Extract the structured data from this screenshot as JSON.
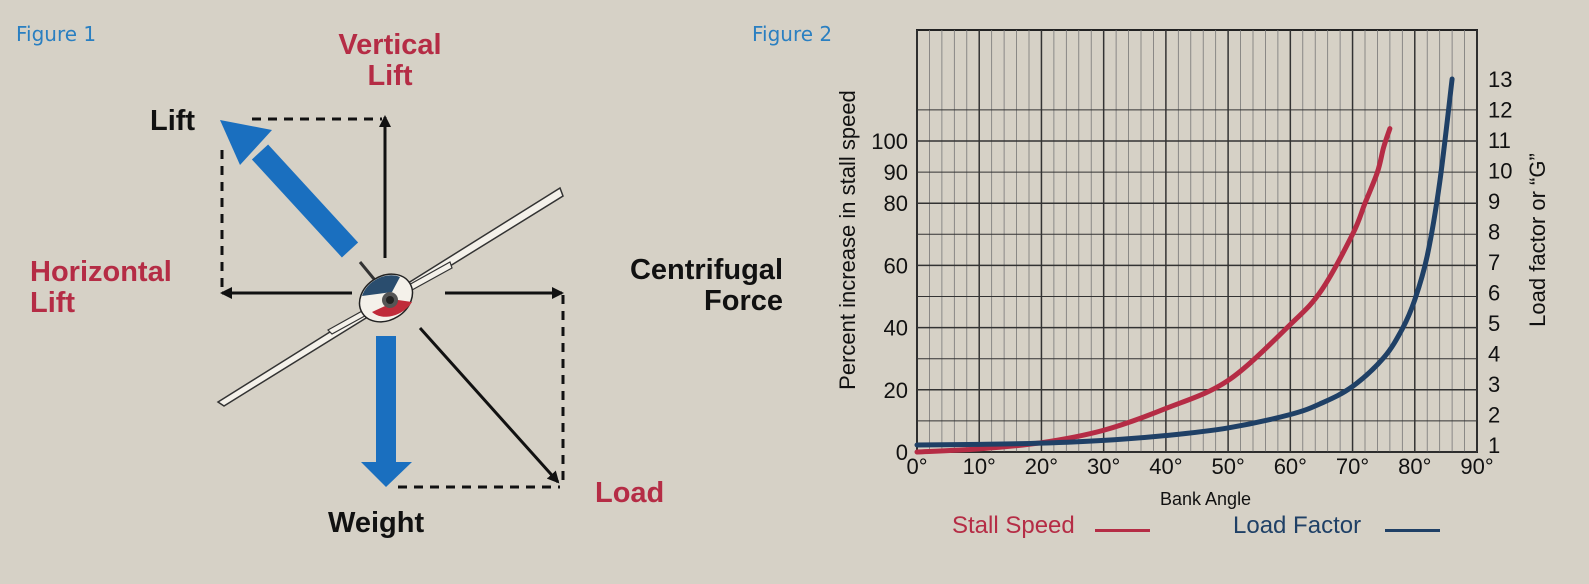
{
  "figure1": {
    "label": "Figure 1",
    "forces": {
      "vertical_lift": "Vertical\nLift",
      "lift": "Lift",
      "horizontal_lift": "Horizontal\nLift",
      "centrifugal_force": "Centrifugal\nForce",
      "load": "Load",
      "weight": "Weight"
    },
    "colors": {
      "component_labels": "#b52c45",
      "main_arrows": "#1a6fbf"
    },
    "icons": [
      "airplane-icon"
    ]
  },
  "figure2": {
    "label": "Figure 2"
  },
  "chart_data": {
    "type": "line",
    "xlabel": "Bank Angle",
    "ylabel_left": "Percent increase in stall speed",
    "ylabel_right": "Load factor or “G”",
    "x_ticks": [
      "0°",
      "10°",
      "20°",
      "30°",
      "40°",
      "50°",
      "60°",
      "70°",
      "80°",
      "90°"
    ],
    "xlim": [
      0,
      90
    ],
    "y_left_ticks": [
      "0",
      "20",
      "40",
      "60",
      "80",
      "90",
      "100"
    ],
    "y_right_ticks": [
      "1",
      "2",
      "3",
      "4",
      "5",
      "6",
      "7",
      "8",
      "9",
      "10",
      "11",
      "12",
      "13"
    ],
    "grid": true,
    "legend_placement": "bottom",
    "series": [
      {
        "name": "Stall Speed",
        "axis": "left",
        "color": "#b52c45",
        "x": [
          0,
          10,
          20,
          30,
          40,
          50,
          60,
          65,
          70,
          72,
          74,
          75,
          76
        ],
        "y": [
          0,
          1,
          3,
          7,
          14,
          23,
          41,
          52,
          70,
          80,
          90,
          98,
          104
        ]
      },
      {
        "name": "Load Factor",
        "axis": "right",
        "color": "#1f4066",
        "x": [
          0,
          10,
          20,
          30,
          40,
          50,
          60,
          65,
          70,
          75,
          78,
          80,
          82,
          84,
          86
        ],
        "y": [
          1,
          1.02,
          1.06,
          1.15,
          1.31,
          1.56,
          2,
          2.37,
          2.92,
          3.86,
          4.81,
          5.76,
          7.2,
          9.6,
          13
        ]
      }
    ]
  }
}
